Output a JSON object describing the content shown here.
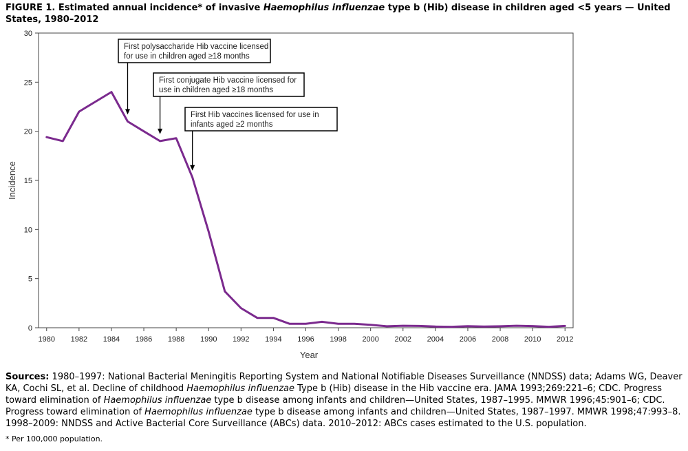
{
  "figure": {
    "title_lead": "FIGURE 1. Estimated annual incidence* of invasive ",
    "title_italic": "Haemophilus influenzae",
    "title_tail": " type b (Hib) disease in children aged <5 years — United States, 1980–2012"
  },
  "chart_data": {
    "type": "line",
    "title": "Estimated annual incidence* of invasive Haemophilus influenzae type b (Hib) disease in children aged <5 years — United States, 1980–2012",
    "xlabel": "Year",
    "ylabel": "Incidence",
    "xlim": [
      1979.5,
      2012.5
    ],
    "ylim": [
      0,
      30
    ],
    "x_ticks": [
      1980,
      1982,
      1984,
      1986,
      1988,
      1990,
      1992,
      1994,
      1996,
      1998,
      2000,
      2002,
      2004,
      2006,
      2008,
      2010,
      2012
    ],
    "y_ticks": [
      0,
      5,
      10,
      15,
      20,
      25,
      30
    ],
    "line_color": "#7b2a8e",
    "series": [
      {
        "name": "Incidence",
        "x": [
          1980,
          1981,
          1982,
          1983,
          1984,
          1985,
          1986,
          1987,
          1988,
          1989,
          1990,
          1991,
          1992,
          1993,
          1994,
          1995,
          1996,
          1997,
          1998,
          1999,
          2000,
          2001,
          2002,
          2003,
          2004,
          2005,
          2006,
          2007,
          2008,
          2009,
          2010,
          2011,
          2012
        ],
        "values": [
          19.4,
          19.0,
          22.0,
          23.0,
          24.0,
          21.0,
          20.0,
          19.0,
          19.3,
          15.3,
          9.8,
          3.7,
          2.0,
          1.0,
          1.0,
          0.4,
          0.4,
          0.6,
          0.4,
          0.4,
          0.3,
          0.15,
          0.2,
          0.18,
          0.12,
          0.1,
          0.16,
          0.12,
          0.15,
          0.2,
          0.17,
          0.1,
          0.18
        ]
      }
    ],
    "annotations": [
      {
        "lines": [
          "First polysaccharide Hib vaccine licensed",
          "for use in children aged ≥18 months"
        ],
        "x": 1985,
        "y": 21.0
      },
      {
        "lines": [
          "First conjugate Hib vaccine licensed for",
          "use in children aged ≥18 months"
        ],
        "x": 1987,
        "y": 19.0
      },
      {
        "lines": [
          "First Hib vaccines licensed for use in",
          "infants aged ≥2 months"
        ],
        "x": 1989,
        "y": 15.3
      }
    ]
  },
  "sources": {
    "label": "Sources:",
    "p1": " 1980–1997: National Bacterial Meningitis Reporting System and National Notifiable Diseases Surveillance (NNDSS) data; Adams WG, Deaver KA, Cochi SL, et al. Decline of childhood ",
    "i1": "Haemophilus influenzae",
    "p2": " Type b (Hib) disease in the Hib vaccine era. JAMA 1993;269:221–6; CDC. Progress toward elimination of ",
    "i2": "Haemophilus influenzae",
    "p3": " type b disease among infants and children—United States, 1987–1995. MMWR 1996;45:901–6; CDC. Progress toward elimination of ",
    "i3": "Haemophilus influenzae",
    "p4": " type b disease among infants and children—United States, 1987–1997. MMWR 1998;47:993–8. 1998–2009: NNDSS and Active Bacterial Core Surveillance (ABCs) data. 2010–2012: ABCs cases estimated to the U.S. population."
  },
  "footnote": "* Per 100,000 population."
}
